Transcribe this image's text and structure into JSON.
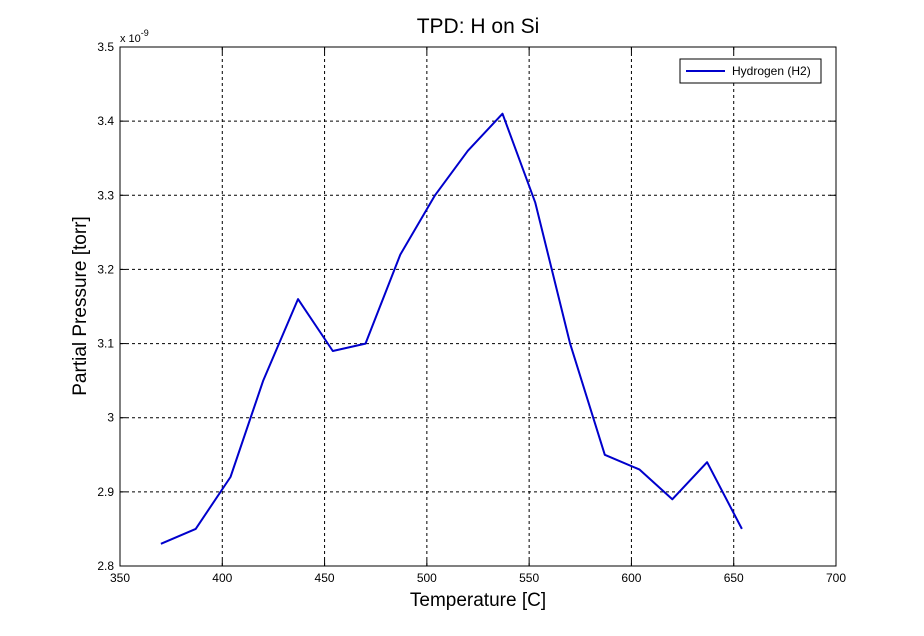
{
  "chart_data": {
    "type": "line",
    "title": "TPD: H on Si",
    "xlabel": "Temperature [C]",
    "ylabel": "Partial Pressure [torr]",
    "y_multiplier_base": "x 10",
    "y_multiplier_exponent": "-9",
    "xlim": [
      350,
      700
    ],
    "ylim": [
      2.8,
      3.5
    ],
    "xticks": [
      350,
      400,
      450,
      500,
      550,
      600,
      650,
      700
    ],
    "yticks": [
      2.8,
      2.9,
      3.0,
      3.1,
      3.2,
      3.3,
      3.4,
      3.5
    ],
    "xtick_labels": [
      "350",
      "400",
      "450",
      "500",
      "550",
      "600",
      "650",
      "700"
    ],
    "ytick_labels": [
      "2.8",
      "2.9",
      "3",
      "3.1",
      "3.2",
      "3.3",
      "3.4",
      "3.5"
    ],
    "grid": true,
    "legend_position": "top-right",
    "series": [
      {
        "name": "Hydrogen (H2)",
        "color": "#0000cc",
        "x": [
          370,
          387,
          404,
          420,
          437,
          454,
          470,
          487,
          504,
          520,
          537,
          553,
          570,
          587,
          604,
          620,
          637,
          654
        ],
        "y": [
          2.83,
          2.85,
          2.92,
          3.05,
          3.16,
          3.09,
          3.1,
          3.22,
          3.3,
          3.36,
          3.41,
          3.29,
          3.1,
          2.95,
          2.93,
          2.89,
          2.94,
          2.85
        ]
      }
    ]
  }
}
